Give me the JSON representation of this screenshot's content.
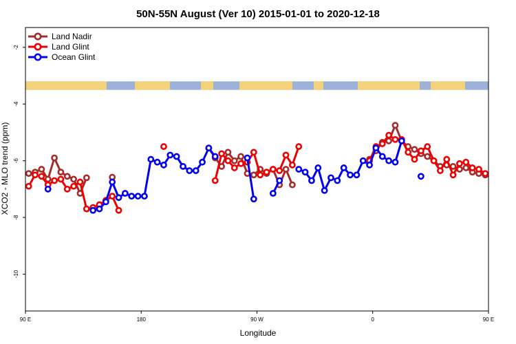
{
  "chart_data": {
    "type": "line",
    "title": "50N-55N August (Ver 10)   2015-01-01 to 2020-12-18",
    "xlabel": "Longitude",
    "ylabel": "XCO2 - MLO trend (ppm)",
    "xlim": [
      90,
      450
    ],
    "ylim": [
      -11.3,
      -1.3
    ],
    "x_ticks": [
      {
        "value": 90,
        "label": "90 E"
      },
      {
        "value": 180,
        "label": "180"
      },
      {
        "value": 270,
        "label": "90 W"
      },
      {
        "value": 360,
        "label": "0"
      },
      {
        "value": 450,
        "label": "90 E"
      },
      {
        "value": 540,
        "label": "180"
      }
    ],
    "y_ticks": [
      -2,
      -4,
      -6,
      -8,
      -10
    ],
    "legend_position": "top-left",
    "land_mask_band": {
      "y_top": -3.2,
      "y_bottom": -3.5,
      "ocean_color": "#9db2d8",
      "land_color": "#f3d27a"
    },
    "series": [
      {
        "name": "Land Nadir",
        "color": "#a52a2a",
        "points": [
          [
            92.5,
            -6.45
          ],
          [
            97.5,
            -6.4
          ],
          [
            102.5,
            -6.3
          ],
          [
            107.5,
            -6.65
          ],
          [
            112.5,
            -5.9
          ],
          [
            117.5,
            -6.4
          ],
          [
            122.5,
            -6.55
          ],
          [
            127.5,
            -6.65
          ],
          [
            132.5,
            -7.15
          ],
          [
            137.5,
            -6.6
          ],
          null,
          [
            157.5,
            -6.58
          ],
          null,
          [
            232.5,
            -5.55
          ],
          [
            237.5,
            -5.9
          ],
          [
            242.5,
            -6.2
          ],
          [
            247.5,
            -5.7
          ],
          [
            252.5,
            -6.0
          ],
          [
            257.5,
            -5.85
          ],
          [
            262.5,
            -6.45
          ],
          [
            267.5,
            -6.5
          ],
          [
            272.5,
            -6.3
          ],
          [
            277.5,
            -6.45
          ],
          [
            282.5,
            -6.3
          ],
          [
            287.5,
            -6.85
          ],
          [
            292.5,
            -6.3
          ],
          [
            297.5,
            -6.85
          ],
          null,
          [
            357.5,
            -5.95
          ],
          [
            362.5,
            -5.65
          ],
          [
            367.5,
            -5.35
          ],
          [
            372.5,
            -5.3
          ],
          [
            377.5,
            -4.75
          ],
          [
            382.5,
            -5.3
          ],
          [
            387.5,
            -5.5
          ],
          [
            392.5,
            -5.6
          ],
          [
            397.5,
            -5.75
          ],
          [
            402.5,
            -5.85
          ],
          [
            407.5,
            -6.0
          ],
          [
            412.5,
            -6.2
          ],
          [
            417.5,
            -6.15
          ],
          [
            422.5,
            -6.2
          ],
          [
            427.5,
            -6.3
          ],
          [
            432.5,
            -6.25
          ],
          [
            437.5,
            -6.4
          ],
          [
            442.5,
            -6.45
          ],
          [
            447.5,
            -6.5
          ],
          [
            452.5,
            -6.6
          ],
          [
            457.5,
            -6.4
          ],
          [
            462.5,
            -6.3
          ],
          [
            467.5,
            -6.6
          ],
          [
            472.5,
            -5.9
          ],
          [
            477.5,
            -6.4
          ],
          [
            482.5,
            -6.55
          ],
          [
            487.5,
            -6.75
          ],
          [
            492.5,
            -7.15
          ],
          [
            497.5,
            -6.6
          ],
          null,
          [
            507.5,
            -6.6
          ]
        ]
      },
      {
        "name": "Land Glint",
        "color": "#ee0000",
        "points": [
          [
            92.5,
            -6.9
          ],
          [
            97.5,
            -6.5
          ],
          [
            102.5,
            -6.55
          ],
          [
            107.5,
            -6.85
          ],
          [
            112.5,
            -6.7
          ],
          [
            117.5,
            -6.65
          ],
          [
            122.5,
            -7.0
          ],
          [
            127.5,
            -6.9
          ],
          [
            132.5,
            -6.75
          ],
          [
            137.5,
            -7.7
          ],
          [
            142.5,
            -7.65
          ],
          [
            147.5,
            -7.55
          ],
          [
            152.5,
            -7.4
          ],
          [
            157.5,
            -7.25
          ],
          [
            162.5,
            -7.75
          ],
          null,
          [
            197.5,
            -5.5
          ],
          null,
          [
            237.5,
            -6.7
          ],
          [
            242.5,
            -5.75
          ],
          [
            247.5,
            -6.0
          ],
          [
            252.5,
            -6.25
          ],
          [
            257.5,
            -6.1
          ],
          [
            262.5,
            -6.05
          ],
          [
            267.5,
            -5.7
          ],
          [
            272.5,
            -6.5
          ],
          [
            277.5,
            -6.4
          ],
          [
            282.5,
            -6.3
          ],
          [
            287.5,
            -6.35
          ],
          [
            292.5,
            -5.8
          ],
          [
            297.5,
            -6.15
          ],
          [
            302.5,
            -5.5
          ],
          null,
          [
            357.5,
            -6.0
          ],
          [
            362.5,
            -5.5
          ],
          [
            367.5,
            -5.4
          ],
          [
            372.5,
            -5.1
          ],
          [
            377.5,
            -5.25
          ],
          [
            382.5,
            -5.25
          ],
          [
            387.5,
            -5.7
          ],
          [
            392.5,
            -5.95
          ],
          [
            397.5,
            -5.65
          ],
          [
            402.5,
            -5.5
          ],
          [
            407.5,
            -6.0
          ],
          [
            412.5,
            -6.35
          ],
          [
            417.5,
            -5.95
          ],
          [
            422.5,
            -6.5
          ],
          [
            427.5,
            -6.1
          ],
          [
            432.5,
            -6.05
          ],
          [
            437.5,
            -6.25
          ],
          [
            442.5,
            -6.3
          ],
          [
            447.5,
            -6.45
          ],
          [
            452.5,
            -6.55
          ],
          [
            457.5,
            -6.95
          ],
          [
            462.5,
            -6.5
          ],
          [
            467.5,
            -6.7
          ],
          [
            472.5,
            -6.7
          ],
          [
            477.5,
            -6.4
          ],
          [
            482.5,
            -7.0
          ],
          [
            487.5,
            -6.85
          ],
          [
            492.5,
            -6.75
          ],
          [
            497.5,
            -7.0
          ],
          [
            502.5,
            -7.75
          ],
          [
            507.5,
            -7.15
          ],
          [
            512.5,
            -7.8
          ]
        ]
      },
      {
        "name": "Ocean Glint",
        "color": "#0000ee",
        "points": [
          [
            107.5,
            -7.0
          ],
          null,
          [
            142.5,
            -7.75
          ],
          [
            147.5,
            -7.7
          ],
          [
            152.5,
            -7.45
          ],
          [
            157.5,
            -6.75
          ],
          [
            162.5,
            -7.3
          ],
          [
            167.5,
            -7.15
          ],
          [
            172.5,
            -7.25
          ],
          [
            177.5,
            -7.25
          ],
          [
            182.5,
            -7.25
          ],
          [
            187.5,
            -5.95
          ],
          [
            192.5,
            -6.05
          ],
          [
            197.5,
            -6.15
          ],
          [
            202.5,
            -5.8
          ],
          [
            207.5,
            -5.85
          ],
          [
            212.5,
            -6.2
          ],
          [
            217.5,
            -6.35
          ],
          [
            222.5,
            -6.35
          ],
          [
            227.5,
            -6.05
          ],
          [
            232.5,
            -5.55
          ],
          [
            237.5,
            -5.85
          ],
          null,
          [
            262.5,
            -5.9
          ],
          [
            267.5,
            -7.35
          ],
          null,
          [
            282.5,
            -7.15
          ],
          [
            287.5,
            -6.7
          ],
          null,
          [
            302.5,
            -6.3
          ],
          [
            307.5,
            -6.4
          ],
          [
            312.5,
            -6.7
          ],
          [
            317.5,
            -6.25
          ],
          [
            322.5,
            -7.05
          ],
          [
            327.5,
            -6.6
          ],
          [
            332.5,
            -6.7
          ],
          [
            337.5,
            -6.25
          ],
          [
            342.5,
            -6.5
          ],
          [
            347.5,
            -6.5
          ],
          [
            352.5,
            -6.0
          ],
          [
            357.5,
            -6.15
          ],
          [
            362.5,
            -5.55
          ],
          [
            367.5,
            -5.85
          ],
          [
            372.5,
            -6.0
          ],
          [
            377.5,
            -6.05
          ],
          [
            382.5,
            -5.3
          ],
          null,
          [
            397.5,
            -6.55
          ],
          null,
          [
            462.5,
            -7.0
          ],
          null,
          [
            487.5,
            -7.65
          ],
          [
            492.5,
            -7.6
          ],
          [
            497.5,
            -7.45
          ],
          [
            502.5,
            -6.7
          ],
          [
            507.5,
            -7.25
          ],
          [
            512.5,
            -7.15
          ],
          [
            517.5,
            -7.25
          ],
          [
            522.5,
            -7.25
          ],
          [
            527.5,
            -7.25
          ]
        ]
      }
    ]
  }
}
